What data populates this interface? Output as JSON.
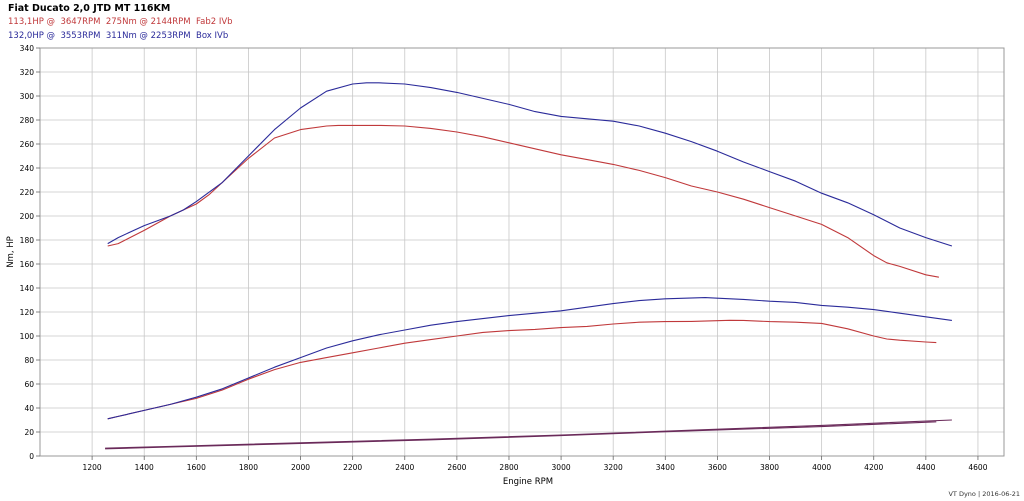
{
  "title": "Fiat Ducato 2,0 JTD MT 116KM",
  "legend": {
    "series1_text": "113,1HP @  3647RPM  275Nm @ 2144RPM  Fab2 IVb",
    "series2_text": "132,0HP @  3553RPM  311Nm @ 2253RPM  Box IVb"
  },
  "footer": "VT Dyno | 2016-06-21",
  "colors": {
    "fab": "#c0393b",
    "box": "#2b2b9a",
    "loss": "#6a2a5a",
    "grid": "#c8c8c8"
  },
  "chart_data": {
    "type": "line",
    "xlabel": "Engine RPM",
    "ylabel": "Nm, HP",
    "xlim": [
      1000,
      4700
    ],
    "ylim": [
      0,
      340
    ],
    "x_ticks": [
      1200,
      1400,
      1600,
      1800,
      2000,
      2200,
      2400,
      2600,
      2800,
      3000,
      3200,
      3400,
      3600,
      3800,
      4000,
      4200,
      4400,
      4600
    ],
    "y_ticks": [
      0,
      20,
      40,
      60,
      80,
      100,
      120,
      140,
      160,
      180,
      200,
      220,
      240,
      260,
      280,
      300,
      320,
      340
    ],
    "grid": true,
    "series": [
      {
        "group": "fab",
        "kind": "torque",
        "points": [
          [
            1260,
            175
          ],
          [
            1300,
            177
          ],
          [
            1400,
            188
          ],
          [
            1500,
            200
          ],
          [
            1600,
            210
          ],
          [
            1650,
            218
          ],
          [
            1700,
            228
          ],
          [
            1800,
            248
          ],
          [
            1900,
            265
          ],
          [
            2000,
            272
          ],
          [
            2100,
            275
          ],
          [
            2144,
            275.5
          ],
          [
            2200,
            275.5
          ],
          [
            2300,
            275.5
          ],
          [
            2400,
            275
          ],
          [
            2500,
            273
          ],
          [
            2600,
            270
          ],
          [
            2700,
            266
          ],
          [
            2800,
            261
          ],
          [
            2900,
            256
          ],
          [
            3000,
            251
          ],
          [
            3100,
            247
          ],
          [
            3200,
            243
          ],
          [
            3300,
            238
          ],
          [
            3400,
            232
          ],
          [
            3500,
            225
          ],
          [
            3600,
            220
          ],
          [
            3700,
            214
          ],
          [
            3800,
            207
          ],
          [
            3900,
            200
          ],
          [
            4000,
            193
          ],
          [
            4100,
            182
          ],
          [
            4200,
            167
          ],
          [
            4250,
            161
          ],
          [
            4300,
            158
          ],
          [
            4400,
            151
          ],
          [
            4450,
            149
          ]
        ]
      },
      {
        "group": "box",
        "kind": "torque",
        "points": [
          [
            1260,
            177
          ],
          [
            1300,
            182
          ],
          [
            1400,
            192
          ],
          [
            1500,
            200
          ],
          [
            1550,
            205
          ],
          [
            1600,
            212
          ],
          [
            1700,
            228
          ],
          [
            1800,
            250
          ],
          [
            1900,
            272
          ],
          [
            2000,
            290
          ],
          [
            2100,
            304
          ],
          [
            2200,
            310
          ],
          [
            2253,
            311
          ],
          [
            2300,
            311
          ],
          [
            2400,
            310
          ],
          [
            2500,
            307
          ],
          [
            2600,
            303
          ],
          [
            2700,
            298
          ],
          [
            2800,
            293
          ],
          [
            2900,
            287
          ],
          [
            3000,
            283
          ],
          [
            3100,
            281
          ],
          [
            3200,
            279
          ],
          [
            3300,
            275
          ],
          [
            3400,
            269
          ],
          [
            3500,
            262
          ],
          [
            3600,
            254
          ],
          [
            3700,
            245
          ],
          [
            3800,
            237
          ],
          [
            3900,
            229
          ],
          [
            4000,
            219
          ],
          [
            4100,
            211
          ],
          [
            4200,
            201
          ],
          [
            4300,
            190
          ],
          [
            4400,
            182
          ],
          [
            4500,
            175
          ]
        ]
      },
      {
        "group": "fab",
        "kind": "power",
        "points": [
          [
            1260,
            31
          ],
          [
            1300,
            33
          ],
          [
            1400,
            38
          ],
          [
            1500,
            43
          ],
          [
            1600,
            48
          ],
          [
            1700,
            55
          ],
          [
            1800,
            64
          ],
          [
            1900,
            72
          ],
          [
            2000,
            78
          ],
          [
            2100,
            82
          ],
          [
            2200,
            86
          ],
          [
            2300,
            90
          ],
          [
            2400,
            94
          ],
          [
            2500,
            97
          ],
          [
            2600,
            100
          ],
          [
            2700,
            103
          ],
          [
            2800,
            104.5
          ],
          [
            2900,
            105.5
          ],
          [
            3000,
            107
          ],
          [
            3100,
            108
          ],
          [
            3200,
            110
          ],
          [
            3300,
            111.5
          ],
          [
            3400,
            112
          ],
          [
            3500,
            112.2
          ],
          [
            3647,
            113.1
          ],
          [
            3700,
            113
          ],
          [
            3800,
            112
          ],
          [
            3900,
            111.5
          ],
          [
            4000,
            110.5
          ],
          [
            4100,
            106
          ],
          [
            4200,
            100
          ],
          [
            4250,
            97.5
          ],
          [
            4300,
            96.5
          ],
          [
            4400,
            95
          ],
          [
            4440,
            94.5
          ]
        ]
      },
      {
        "group": "box",
        "kind": "power",
        "points": [
          [
            1260,
            31
          ],
          [
            1300,
            33
          ],
          [
            1400,
            38
          ],
          [
            1500,
            43
          ],
          [
            1600,
            49
          ],
          [
            1700,
            56
          ],
          [
            1800,
            65
          ],
          [
            1900,
            74
          ],
          [
            2000,
            82
          ],
          [
            2100,
            90
          ],
          [
            2200,
            96
          ],
          [
            2300,
            101
          ],
          [
            2400,
            105
          ],
          [
            2500,
            109
          ],
          [
            2600,
            112
          ],
          [
            2700,
            114.5
          ],
          [
            2800,
            117
          ],
          [
            2900,
            119
          ],
          [
            3000,
            121
          ],
          [
            3100,
            124
          ],
          [
            3200,
            127
          ],
          [
            3300,
            129.5
          ],
          [
            3400,
            131
          ],
          [
            3553,
            132
          ],
          [
            3600,
            131.5
          ],
          [
            3700,
            130.5
          ],
          [
            3800,
            129
          ],
          [
            3900,
            128
          ],
          [
            4000,
            125.5
          ],
          [
            4100,
            124
          ],
          [
            4200,
            122
          ],
          [
            4300,
            119
          ],
          [
            4400,
            116
          ],
          [
            4500,
            113
          ]
        ]
      },
      {
        "group": "fab",
        "kind": "loss",
        "points": [
          [
            1250,
            6
          ],
          [
            1500,
            7.5
          ],
          [
            2000,
            10.5
          ],
          [
            2500,
            13.5
          ],
          [
            3000,
            17
          ],
          [
            3500,
            21
          ],
          [
            4000,
            24.5
          ],
          [
            4440,
            28.5
          ]
        ]
      },
      {
        "group": "box",
        "kind": "loss",
        "points": [
          [
            1250,
            6.5
          ],
          [
            1500,
            8
          ],
          [
            2000,
            11
          ],
          [
            2500,
            14
          ],
          [
            3000,
            17.5
          ],
          [
            3500,
            21.5
          ],
          [
            4000,
            25.5
          ],
          [
            4500,
            30
          ]
        ]
      }
    ]
  }
}
